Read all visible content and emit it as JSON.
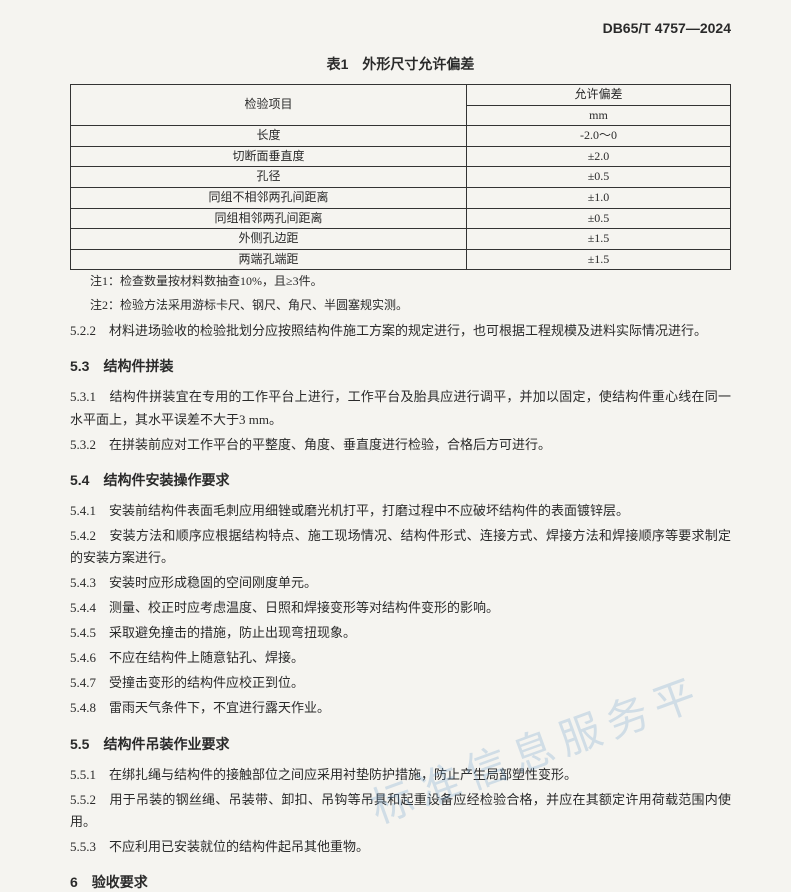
{
  "header": {
    "doc_code": "DB65/T 4757—2024"
  },
  "table1": {
    "title": "表1　外形尺寸允许偏差",
    "header_item": "检验项目",
    "header_tol": "允许偏差",
    "header_unit": "mm",
    "rows": [
      {
        "item": "长度",
        "tol": "-2.0～0"
      },
      {
        "item": "切断面垂直度",
        "tol": "±2.0"
      },
      {
        "item": "孔径",
        "tol": "±0.5"
      },
      {
        "item": "同组不相邻两孔间距离",
        "tol": "±1.0"
      },
      {
        "item": "同组相邻两孔间距离",
        "tol": "±0.5"
      },
      {
        "item": "外侧孔边距",
        "tol": "±1.5"
      },
      {
        "item": "两端孔端距",
        "tol": "±1.5"
      }
    ],
    "note1": "注1：检查数量按材料数抽查10%，且≥3件。",
    "note2": "注2：检验方法采用游标卡尺、钢尺、角尺、半圆塞规实测。"
  },
  "s522": {
    "num": "5.2.2",
    "text": "　材料进场验收的检验批划分应按照结构件施工方案的规定进行，也可根据工程规模及进料实际情况进行。"
  },
  "s53": {
    "heading": "5.3　结构件拼装",
    "c1_num": "5.3.1",
    "c1_text": "　结构件拼装宜在专用的工作平台上进行，工作平台及胎具应进行调平，并加以固定，使结构件重心线在同一水平面上，其水平误差不大于3 mm。",
    "c2_num": "5.3.2",
    "c2_text": "　在拼装前应对工作平台的平整度、角度、垂直度进行检验，合格后方可进行。"
  },
  "s54": {
    "heading": "5.4　结构件安装操作要求",
    "c1_num": "5.4.1",
    "c1_text": "　安装前结构件表面毛刺应用细锉或磨光机打平，打磨过程中不应破坏结构件的表面镀锌层。",
    "c2_num": "5.4.2",
    "c2_text": "　安装方法和顺序应根据结构特点、施工现场情况、结构件形式、连接方式、焊接方法和焊接顺序等要求制定的安装方案进行。",
    "c3_num": "5.4.3",
    "c3_text": "　安装时应形成稳固的空间刚度单元。",
    "c4_num": "5.4.4",
    "c4_text": "　测量、校正时应考虑温度、日照和焊接变形等对结构件变形的影响。",
    "c5_num": "5.4.5",
    "c5_text": "　采取避免撞击的措施，防止出现弯扭现象。",
    "c6_num": "5.4.6",
    "c6_text": "　不应在结构件上随意钻孔、焊接。",
    "c7_num": "5.4.7",
    "c7_text": "　受撞击变形的结构件应校正到位。",
    "c8_num": "5.4.8",
    "c8_text": "　雷雨天气条件下，不宜进行露天作业。"
  },
  "s55": {
    "heading": "5.5　结构件吊装作业要求",
    "c1_num": "5.5.1",
    "c1_text": "　在绑扎绳与结构件的接触部位之间应采用衬垫防护措施，防止产生局部塑性变形。",
    "c2_num": "5.5.2",
    "c2_text": "　用于吊装的钢丝绳、吊装带、卸扣、吊钩等吊具和起重设备应经检验合格，并应在其额定许用荷载范围内使用。",
    "c3_num": "5.5.3",
    "c3_text": "　不应利用已安装就位的结构件起吊其他重物。"
  },
  "s6": {
    "heading": "6　验收要求"
  },
  "watermark": "标准信息服务平"
}
